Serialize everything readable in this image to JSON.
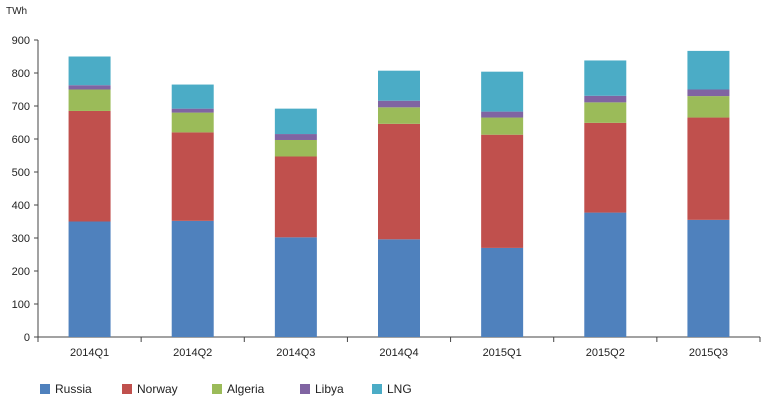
{
  "chart_data": {
    "type": "bar",
    "stacked": true,
    "unit_label": "TWh",
    "categories": [
      "2014Q1",
      "2014Q2",
      "2014Q3",
      "2014Q4",
      "2015Q1",
      "2015Q2",
      "2015Q3"
    ],
    "series": [
      {
        "name": "Russia",
        "color": "#4F81BD",
        "values": [
          350,
          352,
          302,
          296,
          270,
          377,
          355
        ]
      },
      {
        "name": "Norway",
        "color": "#C0504D",
        "values": [
          335,
          268,
          245,
          350,
          343,
          272,
          310
        ]
      },
      {
        "name": "Algeria",
        "color": "#9BBB59",
        "values": [
          65,
          60,
          50,
          50,
          52,
          62,
          65
        ]
      },
      {
        "name": "Libya",
        "color": "#8064A2",
        "values": [
          13,
          12,
          18,
          20,
          18,
          20,
          20
        ]
      },
      {
        "name": "LNG",
        "color": "#4BACC6",
        "values": [
          87,
          73,
          77,
          91,
          121,
          107,
          117
        ]
      }
    ],
    "ylim": [
      0,
      900
    ],
    "yticks": [
      0,
      100,
      200,
      300,
      400,
      500,
      600,
      700,
      800,
      900
    ],
    "grid": false,
    "legend_position": "bottom-left"
  }
}
